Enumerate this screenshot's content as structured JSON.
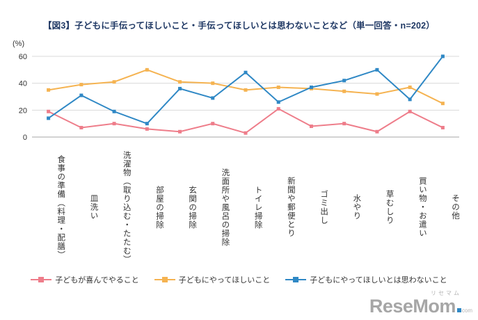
{
  "title": "【図3】子どもに手伝ってほしいこと・手伝ってほしいとは思わないことなど（単一回答・n=202）",
  "chart_data": {
    "type": "line",
    "title": "子どもに手伝ってほしいこと・手伝ってほしいとは思わないことなど",
    "sample_note": "単一回答・n=202",
    "y_unit": "(%)",
    "ylim": [
      0,
      60
    ],
    "yticks": [
      0,
      20,
      40,
      60
    ],
    "grid": "horizontal",
    "legend_position": "bottom",
    "marker": "square",
    "categories": [
      "食事の準備（料理・配膳）",
      "皿洗い",
      "洗濯物（取り込む・たたむ）",
      "部屋の掃除",
      "玄関の掃除",
      "洗面所や風呂の掃除",
      "トイレ掃除",
      "新聞や郵便とり",
      "ゴミ出し",
      "水やり",
      "草むしり",
      "買い物・お遣い",
      "その他"
    ],
    "series": [
      {
        "name": "子どもが喜んでやること",
        "color": "#ee7d8a",
        "values": [
          19,
          7,
          10,
          6,
          4,
          10,
          3,
          21,
          8,
          10,
          4,
          19,
          7
        ]
      },
      {
        "name": "子どもにやってほしいこと",
        "color": "#f5b351",
        "values": [
          35,
          39,
          41,
          50,
          41,
          40,
          35,
          37,
          36,
          34,
          32,
          37,
          25
        ]
      },
      {
        "name": "子どもにやってほしいとは思わないこと",
        "color": "#2f88c5",
        "values": [
          14,
          31,
          19,
          10,
          36,
          29,
          48,
          26,
          37,
          42,
          50,
          28,
          60
        ]
      }
    ]
  },
  "logo": {
    "katakana": "リセマム",
    "name": "ReseMom",
    "tld": "com"
  }
}
